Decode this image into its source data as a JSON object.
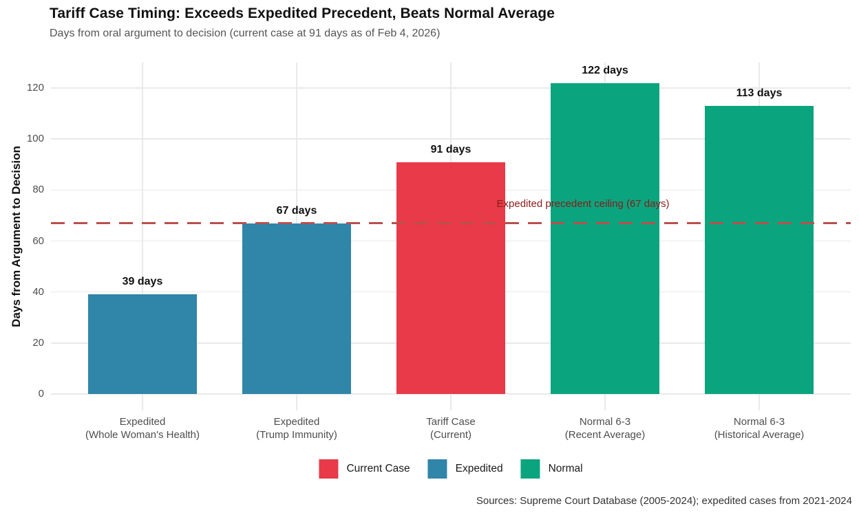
{
  "header": {
    "title": "Tariff Case Timing: Exceeds Expedited Precedent, Beats Normal Average",
    "subtitle": "Days from oral argument to decision (current case at 91 days as of Feb 4, 2026)"
  },
  "chart_data": {
    "type": "bar",
    "title": "Tariff Case Timing: Exceeds Expedited Precedent, Beats Normal Average",
    "subtitle": "Days from oral argument to decision (current case at 91 days as of Feb 4, 2026)",
    "categories": [
      "Expedited\n(Whole Woman's Health)",
      "Expedited\n(Trump Immunity)",
      "Tariff Case\n(Current)",
      "Normal 6-3\n(Recent Average)",
      "Normal 6-3\n(Historical Average)"
    ],
    "values": [
      39,
      67,
      91,
      122,
      113
    ],
    "bar_labels": [
      "39 days",
      "67 days",
      "91 days",
      "122 days",
      "113 days"
    ],
    "bar_colors": [
      "#2F86A8",
      "#2F86A8",
      "#E83A48",
      "#0AA57E",
      "#0AA57E"
    ],
    "groups": [
      "Expedited",
      "Expedited",
      "Current Case",
      "Normal",
      "Normal"
    ],
    "xlabel": "",
    "ylabel": "Days from Argument to Decision",
    "yticks": [
      0,
      20,
      40,
      60,
      80,
      100,
      120
    ],
    "ylim": [
      0,
      130
    ],
    "grid": "major only, light gray on white",
    "reference_line": {
      "value": 67,
      "style": "dashed",
      "color": "#B9504B",
      "label": "Expedited precedent ceiling (67 days)",
      "label_color": "#8B1A1A"
    },
    "legend": {
      "position": "bottom",
      "entries": [
        {
          "label": "Current Case",
          "color": "#E83A48"
        },
        {
          "label": "Expedited",
          "color": "#2F86A8"
        },
        {
          "label": "Normal",
          "color": "#0AA57E"
        }
      ]
    },
    "caption": "Sources: Supreme Court Database (2005-2024); expedited cases from 2021-2024"
  }
}
